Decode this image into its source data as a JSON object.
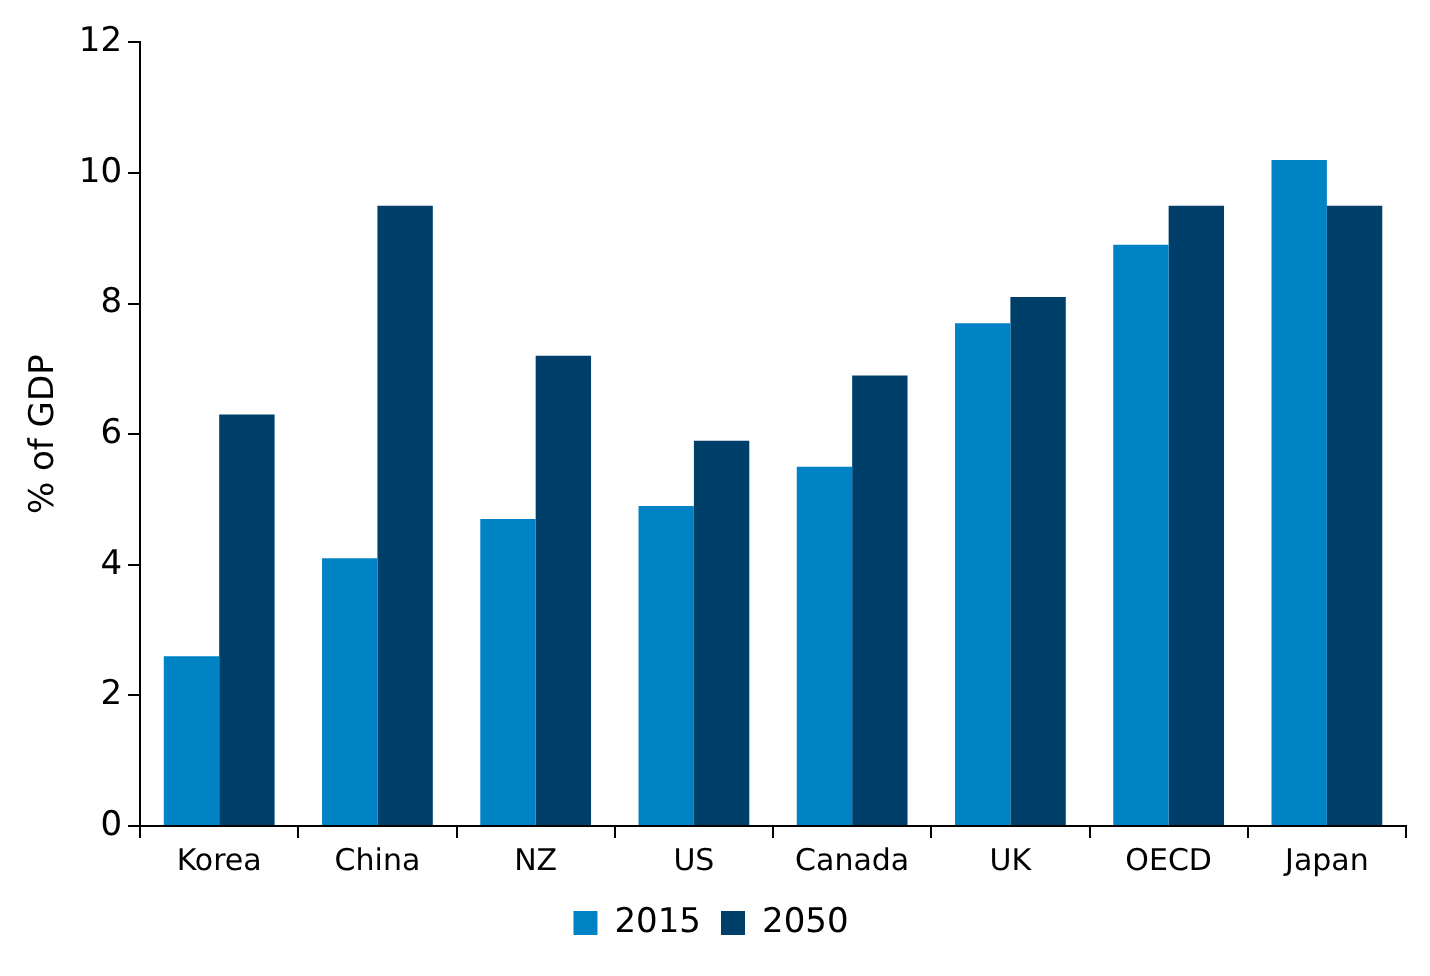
{
  "chart_data": {
    "type": "bar",
    "ylabel": "% of GDP",
    "categories": [
      "Korea",
      "China",
      "NZ",
      "US",
      "Canada",
      "UK",
      "OECD",
      "Japan"
    ],
    "series": [
      {
        "name": "2015",
        "color": "#0083c4",
        "values": [
          2.6,
          4.1,
          4.7,
          4.9,
          5.5,
          7.7,
          8.9,
          10.2
        ]
      },
      {
        "name": "2050",
        "color": "#003f69",
        "values": [
          6.3,
          9.5,
          7.2,
          5.9,
          6.9,
          8.1,
          9.5,
          9.5
        ]
      }
    ],
    "ylim": [
      0,
      12
    ],
    "yticks": [
      0,
      2,
      4,
      6,
      8,
      10,
      12
    ],
    "grid": false,
    "legend": "bottom"
  }
}
